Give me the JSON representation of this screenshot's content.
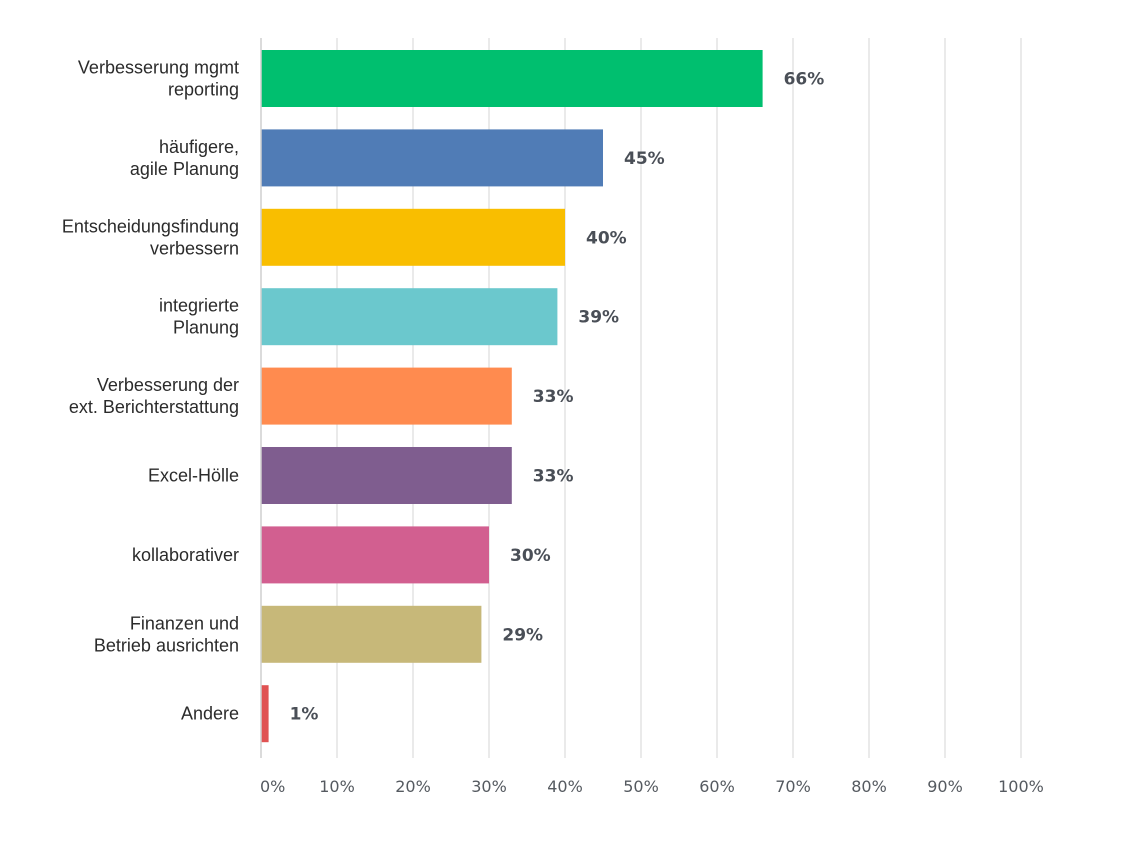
{
  "chart_data": {
    "type": "bar",
    "orientation": "horizontal",
    "categories": [
      [
        "Verbesserung mgmt",
        "reporting"
      ],
      [
        "häufigere,",
        "agile Planung"
      ],
      [
        "Entscheidungsfindung",
        "verbessern"
      ],
      [
        "integrierte",
        "Planung"
      ],
      [
        "Verbesserung der",
        "ext. Berichterstattung"
      ],
      [
        "Excel-Hölle"
      ],
      [
        "kollaborativer"
      ],
      [
        "Finanzen und",
        "Betrieb ausrichten"
      ],
      [
        "Andere"
      ]
    ],
    "values": [
      66,
      45,
      40,
      39,
      33,
      33,
      30,
      29,
      1
    ],
    "value_labels": [
      "66%",
      "45%",
      "40%",
      "39%",
      "33%",
      "33%",
      "30%",
      "29%",
      "1%"
    ],
    "colors": [
      "#00bf6f",
      "#507cb6",
      "#f9be00",
      "#6bc8cd",
      "#ff8b4f",
      "#7f5d8f",
      "#d25f90",
      "#c7b879",
      "#e05252"
    ],
    "xlim": [
      0,
      100
    ],
    "x_ticks": [
      0,
      10,
      20,
      30,
      40,
      50,
      60,
      70,
      80,
      90,
      100
    ],
    "x_tick_labels": [
      "0%",
      "10%",
      "20%",
      "30%",
      "40%",
      "50%",
      "60%",
      "70%",
      "80%",
      "90%",
      "100%"
    ],
    "grid": true,
    "legend": "none",
    "title": "",
    "xlabel": "",
    "ylabel": ""
  }
}
